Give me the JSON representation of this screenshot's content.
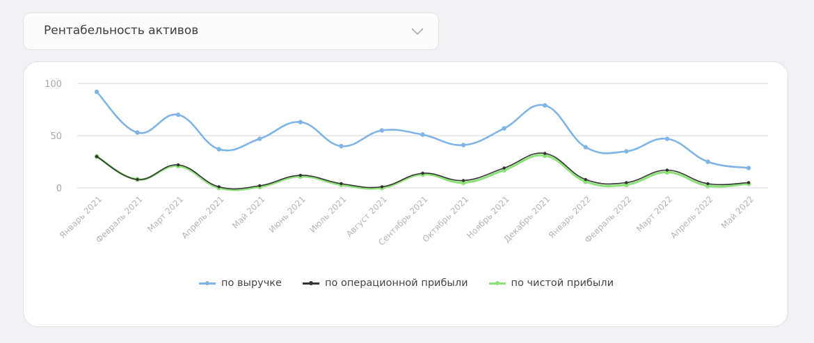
{
  "selector": {
    "label": "Рентабельность активов"
  },
  "colors": {
    "revenue": "#7eb4e6",
    "operating": "#333333",
    "net": "#8ee07a",
    "grid": "#dcdce4"
  },
  "chart_data": {
    "type": "line",
    "title": "Рентабельность активов",
    "xlabel": "",
    "ylabel": "",
    "ylim": [
      0,
      100
    ],
    "yticks": [
      0,
      50,
      100
    ],
    "grid": true,
    "legend_position": "bottom",
    "categories": [
      "Январь 2021",
      "Февраль 2021",
      "Март 2021",
      "Апрель 2021",
      "Май 2021",
      "Июнь 2021",
      "Июль 2021",
      "Август 2021",
      "Сентябрь 2021",
      "Октябрь 2021",
      "Ноябрь 2021",
      "Декабрь 2021",
      "Январь 2022",
      "Февраль 2022",
      "Март 2022",
      "Апрель 2022",
      "Май 2022"
    ],
    "series": [
      {
        "name": "по выручке",
        "color": "#7eb4e6",
        "values": [
          92,
          53,
          70,
          37,
          47,
          63,
          40,
          55,
          51,
          41,
          57,
          79,
          39,
          35,
          47,
          25,
          19
        ]
      },
      {
        "name": "по операционной прибыли",
        "color": "#333333",
        "values": [
          30,
          8,
          22,
          1,
          2,
          12,
          4,
          1,
          14,
          7,
          19,
          33,
          8,
          5,
          17,
          4,
          5
        ]
      },
      {
        "name": "по чистой прибыли",
        "color": "#8ee07a",
        "values": [
          30,
          8,
          21,
          0,
          1,
          11,
          3,
          0,
          13,
          5,
          17,
          31,
          6,
          3,
          15,
          2,
          4
        ]
      }
    ]
  }
}
